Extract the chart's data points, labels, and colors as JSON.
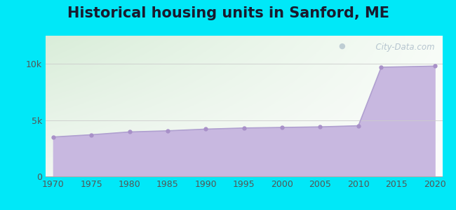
{
  "title": "Historical housing units in Sanford, ME",
  "background_color": "#00e8f8",
  "plot_bg_color_topleft": "#d8edd8",
  "plot_bg_color_bottomright": "#f8f8f8",
  "fill_color": "#c8b8e0",
  "line_color": "#b0a0d0",
  "dot_color": "#a890c8",
  "years": [
    1970,
    1975,
    1980,
    1985,
    1990,
    1995,
    2000,
    2005,
    2010,
    2013,
    2020
  ],
  "values": [
    3500,
    3700,
    3950,
    4050,
    4200,
    4300,
    4350,
    4400,
    4500,
    9700,
    9800
  ],
  "ylim": [
    0,
    12500
  ],
  "yticks": [
    0,
    5000,
    10000
  ],
  "ytick_labels": [
    "0",
    "5k",
    "10k"
  ],
  "xticks": [
    1970,
    1975,
    1980,
    1985,
    1990,
    1995,
    2000,
    2005,
    2010,
    2015,
    2020
  ],
  "watermark": "  City-Data.com",
  "title_fontsize": 15,
  "tick_fontsize": 9,
  "ylabel_color": "#555555",
  "xlabel_color": "#555555"
}
